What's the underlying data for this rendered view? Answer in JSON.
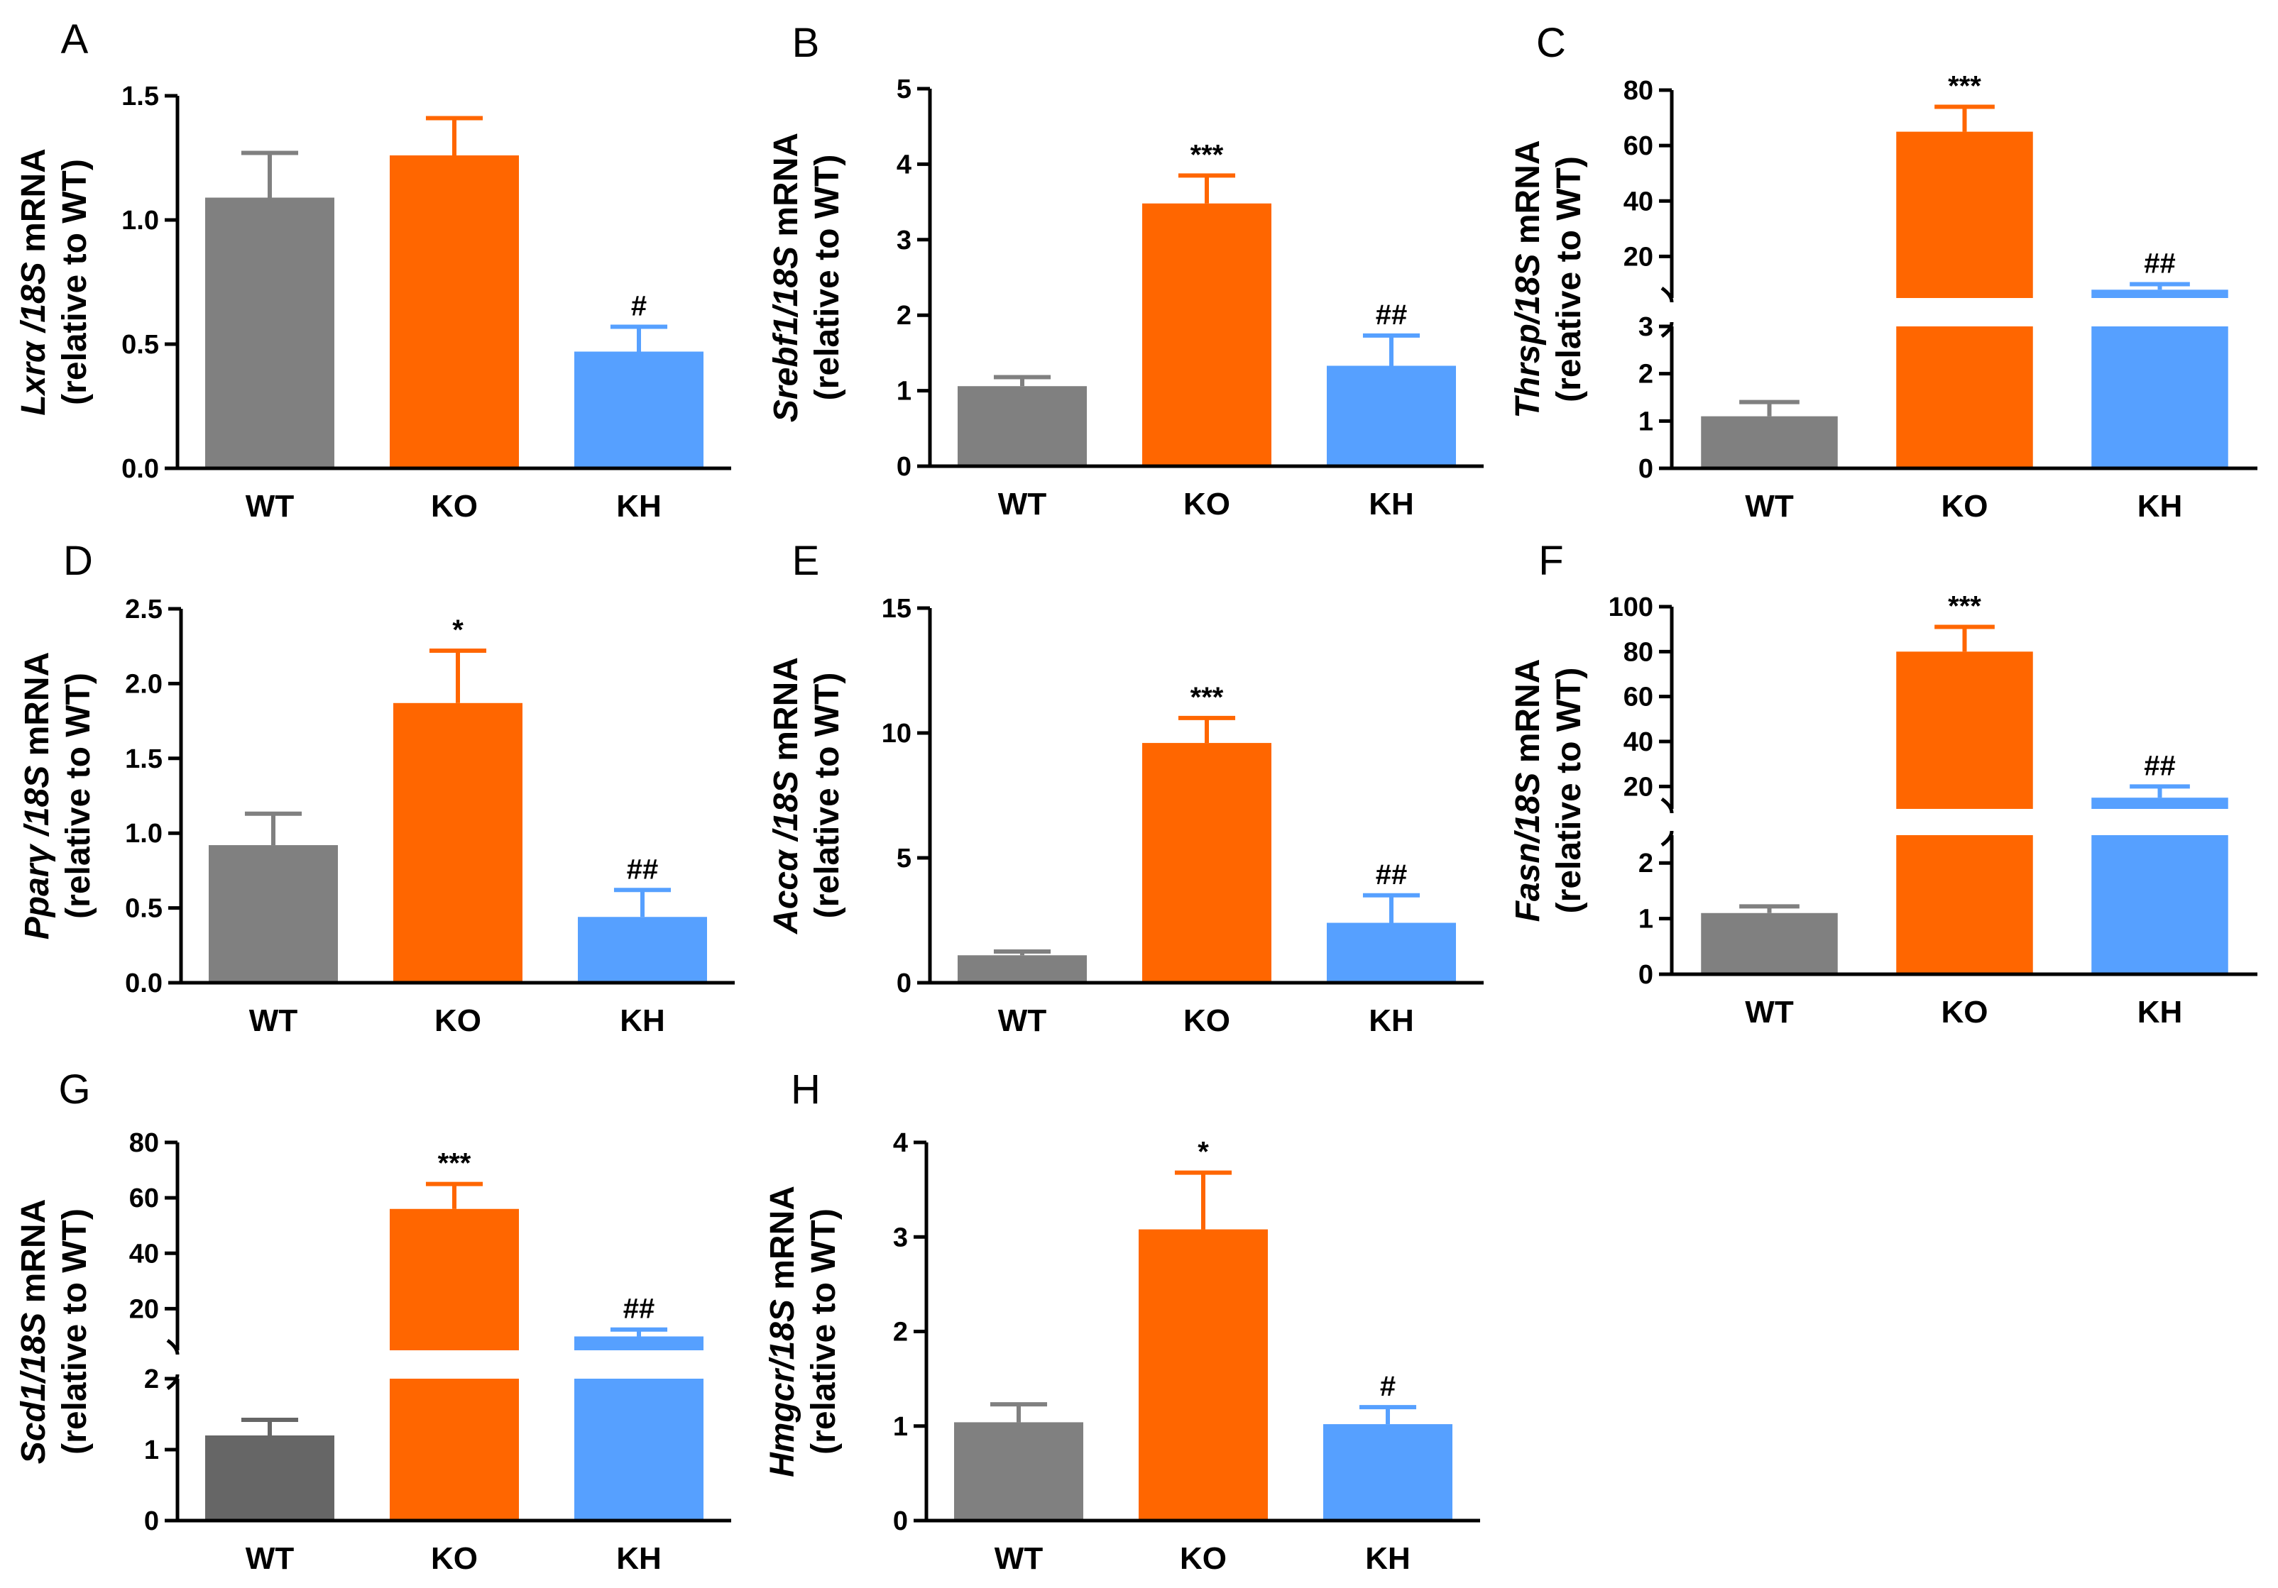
{
  "figure": {
    "colors": {
      "WT": "#808080",
      "KO": "#FF6600",
      "KH": "#56A0FF"
    }
  },
  "chart_data": [
    {
      "panel": "A",
      "type": "bar",
      "gene": "Lxrα",
      "gene_suffix": " /18S",
      "ylabel_suffix": " mRNA",
      "ylabel_line2": "(relative to WT)",
      "categories": [
        "WT",
        "KO",
        "KH"
      ],
      "values": [
        1.09,
        1.26,
        0.47
      ],
      "errors": [
        0.18,
        0.15,
        0.1
      ],
      "significance": [
        "",
        "",
        "#"
      ],
      "ylim": [
        0,
        1.5
      ],
      "yticks": [
        0,
        0.5,
        1.0,
        1.5
      ],
      "ytick_labels": [
        "0.0",
        "0.5",
        "1.0",
        "1.5"
      ]
    },
    {
      "panel": "B",
      "type": "bar",
      "gene": "Srebf1",
      "gene_suffix": "/18S",
      "ylabel_suffix": " mRNA",
      "ylabel_line2": "(relative to WT)",
      "categories": [
        "WT",
        "KO",
        "KH"
      ],
      "values": [
        1.06,
        3.48,
        1.33
      ],
      "errors": [
        0.12,
        0.37,
        0.4
      ],
      "significance": [
        "",
        "***",
        "##"
      ],
      "ylim": [
        0,
        5
      ],
      "yticks": [
        0,
        1,
        2,
        3,
        4,
        5
      ],
      "ytick_labels": [
        "0",
        "1",
        "2",
        "3",
        "4",
        "5"
      ]
    },
    {
      "panel": "C",
      "type": "bar",
      "broken_axis": true,
      "gene": "Thrsp",
      "gene_suffix": "/18S",
      "ylabel_suffix": " mRNA",
      "ylabel_line2": "(relative to WT)",
      "categories": [
        "WT",
        "KO",
        "KH"
      ],
      "values": [
        1.1,
        65,
        8
      ],
      "errors": [
        0.3,
        9,
        2
      ],
      "significance": [
        "",
        "***",
        "##"
      ],
      "lower_range": [
        0,
        3
      ],
      "upper_range": [
        5,
        80
      ],
      "yticks_lower": [
        0,
        1,
        2,
        3
      ],
      "yticks_upper": [
        20,
        40,
        60,
        80
      ]
    },
    {
      "panel": "D",
      "type": "bar",
      "gene": "Pparγ",
      "gene_suffix": " /18S",
      "ylabel_suffix": " mRNA",
      "ylabel_line2": "(relative to WT)",
      "categories": [
        "WT",
        "KO",
        "KH"
      ],
      "values": [
        0.92,
        1.87,
        0.44
      ],
      "errors": [
        0.21,
        0.35,
        0.18
      ],
      "significance": [
        "",
        "*",
        "##"
      ],
      "ylim": [
        0,
        2.5
      ],
      "yticks": [
        0,
        0.5,
        1.0,
        1.5,
        2.0,
        2.5
      ],
      "ytick_labels": [
        "0.0",
        "0.5",
        "1.0",
        "1.5",
        "2.0",
        "2.5"
      ]
    },
    {
      "panel": "E",
      "type": "bar",
      "gene": "Accα",
      "gene_suffix": " /18S",
      "ylabel_suffix": " mRNA",
      "ylabel_line2": "(relative to WT)",
      "categories": [
        "WT",
        "KO",
        "KH"
      ],
      "values": [
        1.1,
        9.6,
        2.4
      ],
      "errors": [
        0.15,
        1.0,
        1.1
      ],
      "significance": [
        "",
        "***",
        "##"
      ],
      "ylim": [
        0,
        15
      ],
      "yticks": [
        0,
        5,
        10,
        15
      ],
      "ytick_labels": [
        "0",
        "5",
        "10",
        "15"
      ]
    },
    {
      "panel": "F",
      "type": "bar",
      "broken_axis": true,
      "gene": "Fasn",
      "gene_suffix": "/18S",
      "ylabel_suffix": " mRNA",
      "ylabel_line2": "(relative to WT)",
      "categories": [
        "WT",
        "KO",
        "KH"
      ],
      "values": [
        1.1,
        80,
        15
      ],
      "errors": [
        0.12,
        11,
        5
      ],
      "significance": [
        "",
        "***",
        "##"
      ],
      "lower_range": [
        0,
        2.5
      ],
      "upper_range": [
        10,
        100
      ],
      "yticks_lower": [
        0,
        1,
        2
      ],
      "yticks_upper": [
        20,
        40,
        60,
        80,
        100
      ]
    },
    {
      "panel": "G",
      "type": "bar",
      "broken_axis": true,
      "gene": "Scd1",
      "gene_suffix": "/18S",
      "ylabel_suffix": " mRNA",
      "ylabel_line2": "(relative to WT)",
      "categories": [
        "WT",
        "KO",
        "KH"
      ],
      "colors": [
        "#666666",
        "#FF6600",
        "#56A0FF"
      ],
      "values": [
        1.2,
        56,
        10
      ],
      "errors": [
        0.22,
        9,
        2.5
      ],
      "significance": [
        "",
        "***",
        "##"
      ],
      "lower_range": [
        0,
        2
      ],
      "upper_range": [
        5,
        80
      ],
      "yticks_lower": [
        0,
        1,
        2
      ],
      "yticks_upper": [
        20,
        40,
        60,
        80
      ]
    },
    {
      "panel": "H",
      "type": "bar",
      "gene": "Hmgcr",
      "gene_suffix": "/18S",
      "ylabel_suffix": " mRNA",
      "ylabel_line2": "(relative to WT)",
      "categories": [
        "WT",
        "KO",
        "KH"
      ],
      "values": [
        1.04,
        3.08,
        1.02
      ],
      "errors": [
        0.19,
        0.6,
        0.18
      ],
      "significance": [
        "",
        "*",
        "#"
      ],
      "ylim": [
        0,
        4
      ],
      "yticks": [
        0,
        1,
        2,
        3,
        4
      ],
      "ytick_labels": [
        "0",
        "1",
        "2",
        "3",
        "4"
      ]
    }
  ]
}
